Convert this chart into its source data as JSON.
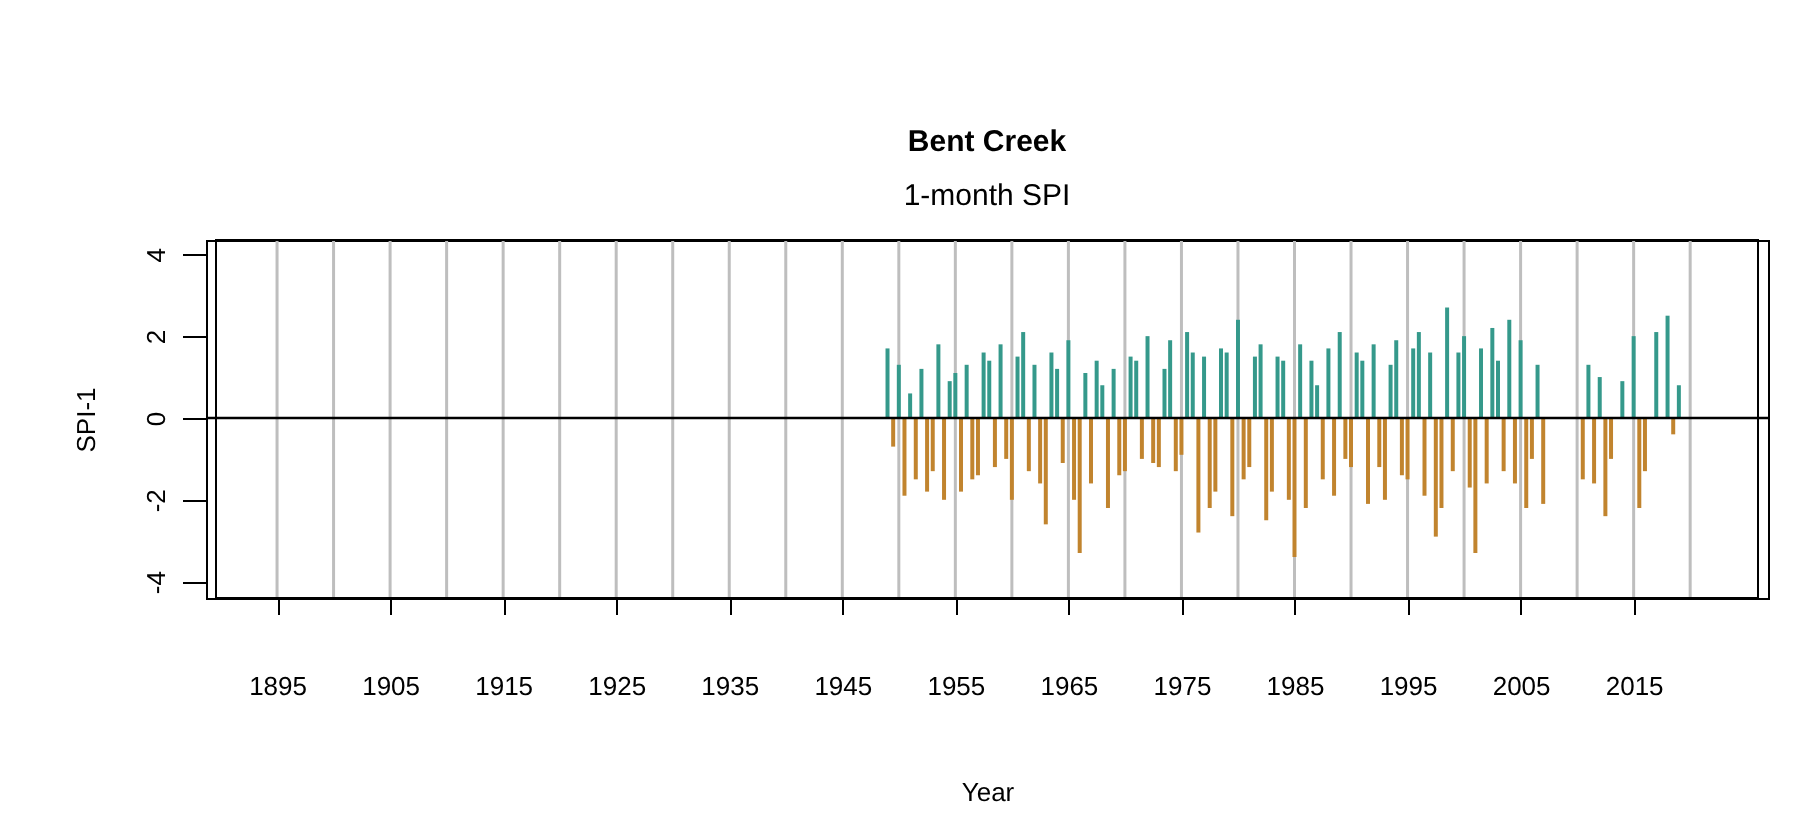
{
  "chart_data": {
    "type": "bar",
    "title": "Bent Creek",
    "subtitle": "1-month SPI",
    "xlabel": "Year",
    "ylabel": "SPI-1",
    "xlim": [
      1889.6,
      2026.0
    ],
    "ylim": [
      -4.4,
      4.35
    ],
    "xticks": [
      1895,
      {
        "value": 1900,
        "label": null
      },
      1905,
      {
        "value": 1910,
        "label": null
      },
      1915,
      {
        "value": 1920,
        "label": null
      },
      1925,
      {
        "value": 1930,
        "label": null
      },
      1935,
      {
        "value": 1940,
        "label": null
      },
      1945,
      {
        "value": 1950,
        "label": null
      },
      1955,
      {
        "value": 1960,
        "label": null
      },
      1965,
      {
        "value": 1970,
        "label": null
      },
      1975,
      {
        "value": 1980,
        "label": null
      },
      1985,
      {
        "value": 1990,
        "label": null
      },
      1995,
      {
        "value": 2000,
        "label": null
      },
      2005,
      {
        "value": 2010,
        "label": null
      },
      2015,
      {
        "value": 2020,
        "label": null
      }
    ],
    "yticks": [
      -4,
      -2,
      0,
      2,
      4
    ],
    "grid": "x",
    "ref_lines": [
      {
        "axis": "y",
        "value": 0,
        "color": "#000000"
      }
    ],
    "series": [
      {
        "color": "#35998b",
        "x": [
          1949.0,
          1950.0,
          1951.0,
          1952.0,
          1953.5,
          1954.5,
          1955.0,
          1956.0,
          1957.5,
          1958.0,
          1959.0,
          1960.5,
          1961.0,
          1962.0,
          1963.5,
          1964.0,
          1965.0,
          1966.5,
          1967.5,
          1968.0,
          1969.0,
          1970.5,
          1971.0,
          1972.0,
          1973.5,
          1974.0,
          1975.5,
          1976.0,
          1977.0,
          1978.5,
          1979.0,
          1980.0,
          1981.5,
          1982.0,
          1983.5,
          1984.0,
          1985.5,
          1986.5,
          1987.0,
          1988.0,
          1989.0,
          1990.5,
          1991.0,
          1992.0,
          1993.5,
          1994.0,
          1995.5,
          1996.0,
          1997.0,
          1998.5,
          1999.5,
          2000.0,
          2001.5,
          2002.5,
          2003.0,
          2004.0,
          2005.0,
          2006.5,
          2011.0,
          2012.0,
          2014.0,
          2015.0,
          2017.0,
          2018.0,
          2019.0
        ],
        "values": [
          1.7,
          1.3,
          0.6,
          1.2,
          1.8,
          0.9,
          1.1,
          1.3,
          1.6,
          1.4,
          1.8,
          1.5,
          2.1,
          1.3,
          1.6,
          1.2,
          1.9,
          1.1,
          1.4,
          0.8,
          1.2,
          1.5,
          1.4,
          2.0,
          1.2,
          1.9,
          2.1,
          1.6,
          1.5,
          1.7,
          1.6,
          2.4,
          1.5,
          1.8,
          1.5,
          1.4,
          1.8,
          1.4,
          0.8,
          1.7,
          2.1,
          1.6,
          1.4,
          1.8,
          1.3,
          1.9,
          1.7,
          2.1,
          1.6,
          2.7,
          1.6,
          2.0,
          1.7,
          2.2,
          1.4,
          2.4,
          1.9,
          1.3,
          1.3,
          1.0,
          0.9,
          2.0,
          2.1,
          2.5,
          0.8
        ]
      },
      {
        "color": "#c1842e",
        "x": [
          1949.5,
          1950.5,
          1951.5,
          1952.5,
          1953.0,
          1954.0,
          1955.5,
          1956.5,
          1957.0,
          1958.5,
          1959.5,
          1960.0,
          1961.5,
          1962.5,
          1963.0,
          1964.5,
          1965.5,
          1966.0,
          1967.0,
          1968.5,
          1969.5,
          1970.0,
          1971.5,
          1972.5,
          1973.0,
          1974.5,
          1975.0,
          1976.5,
          1977.5,
          1978.0,
          1979.5,
          1980.5,
          1981.0,
          1982.5,
          1983.0,
          1984.5,
          1985.0,
          1986.0,
          1987.5,
          1988.5,
          1989.5,
          1990.0,
          1991.5,
          1992.5,
          1993.0,
          1994.5,
          1995.0,
          1996.5,
          1997.5,
          1998.0,
          1999.0,
          2000.5,
          2001.0,
          2002.0,
          2003.5,
          2004.5,
          2005.5,
          2006.0,
          2007.0,
          2010.5,
          2011.5,
          2012.5,
          2013.0,
          2015.5,
          2016.0,
          2018.5
        ],
        "values": [
          -0.7,
          -1.9,
          -1.5,
          -1.8,
          -1.3,
          -2.0,
          -1.8,
          -1.5,
          -1.4,
          -1.2,
          -1.0,
          -2.0,
          -1.3,
          -1.6,
          -2.6,
          -1.1,
          -2.0,
          -3.3,
          -1.6,
          -2.2,
          -1.4,
          -1.3,
          -1.0,
          -1.1,
          -1.2,
          -1.3,
          -0.9,
          -2.8,
          -2.2,
          -1.8,
          -2.4,
          -1.5,
          -1.2,
          -2.5,
          -1.8,
          -2.0,
          -3.4,
          -2.2,
          -1.5,
          -1.9,
          -1.0,
          -1.2,
          -2.1,
          -1.2,
          -2.0,
          -1.4,
          -1.5,
          -1.9,
          -2.9,
          -2.2,
          -1.3,
          -1.7,
          -3.3,
          -1.6,
          -1.3,
          -1.6,
          -2.2,
          -1.0,
          -2.1,
          -1.5,
          -1.6,
          -2.4,
          -1.0,
          -2.2,
          -1.3,
          -0.4
        ]
      }
    ]
  }
}
